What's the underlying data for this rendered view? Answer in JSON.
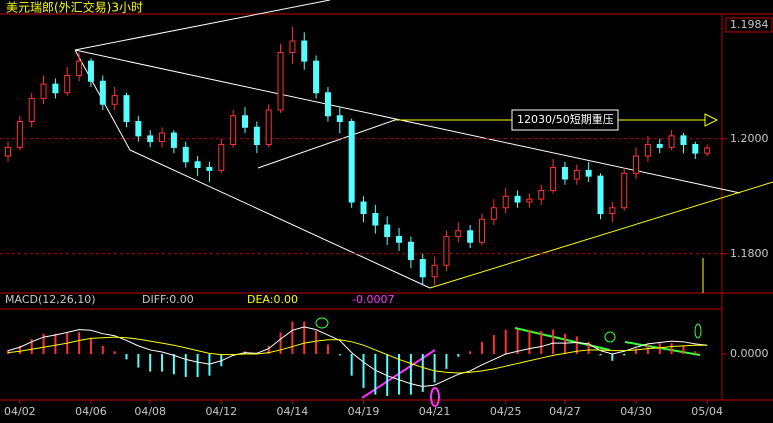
{
  "chart_data": {
    "type": "candlestick",
    "title": "美元瑞郎(外汇交易)3小时",
    "annotation": "12030/50短期重压",
    "last_price": 1.1984,
    "categories": [
      null,
      "04/02",
      null,
      null,
      null,
      null,
      null,
      "04/06",
      null,
      null,
      null,
      null,
      "04/08",
      null,
      null,
      null,
      null,
      null,
      "04/12",
      null,
      null,
      null,
      null,
      null,
      "04/14",
      null,
      null,
      null,
      null,
      null,
      "04/19",
      null,
      null,
      null,
      null,
      null,
      "04/21",
      null,
      null,
      null,
      null,
      null,
      "04/25",
      null,
      null,
      null,
      null,
      "04/27",
      null,
      null,
      null,
      null,
      null,
      "04/30",
      null,
      null,
      null,
      null,
      null,
      "05/04"
    ],
    "open": [
      1.197,
      1.1985,
      1.203,
      1.207,
      1.2095,
      1.208,
      1.211,
      1.2135,
      1.21,
      1.206,
      1.2075,
      1.203,
      1.2005,
      1.1995,
      1.201,
      1.1985,
      1.196,
      1.195,
      1.1945,
      1.199,
      1.204,
      1.202,
      1.199,
      1.205,
      1.215,
      1.217,
      1.2135,
      1.208,
      1.204,
      1.203,
      1.189,
      1.187,
      1.185,
      1.183,
      1.182,
      1.179,
      1.176,
      1.178,
      1.183,
      1.184,
      1.182,
      1.186,
      1.188,
      1.19,
      1.189,
      1.1895,
      1.191,
      1.195,
      1.193,
      1.1945,
      1.1935,
      1.187,
      1.188,
      1.194,
      1.197,
      1.199,
      1.1985,
      1.2005,
      1.199,
      1.1975
    ],
    "high": [
      1.1995,
      1.204,
      1.208,
      1.211,
      1.2105,
      1.2125,
      1.215,
      1.214,
      1.211,
      1.209,
      1.208,
      1.204,
      1.2015,
      1.202,
      1.2015,
      1.1995,
      1.197,
      1.196,
      1.2,
      1.205,
      1.2055,
      1.203,
      1.206,
      1.2165,
      1.2195,
      1.2185,
      1.2145,
      1.209,
      1.2055,
      1.2035,
      1.19,
      1.1885,
      1.1865,
      1.1845,
      1.183,
      1.18,
      1.1795,
      1.184,
      1.1855,
      1.185,
      1.187,
      1.1895,
      1.1915,
      1.191,
      1.1905,
      1.192,
      1.1965,
      1.196,
      1.1955,
      1.196,
      1.194,
      1.189,
      1.195,
      1.1985,
      1.2005,
      1.2,
      1.2015,
      1.201,
      1.1995,
      1.199
    ],
    "low": [
      1.196,
      1.198,
      1.202,
      1.206,
      1.207,
      1.2075,
      1.21,
      1.209,
      1.205,
      1.205,
      1.202,
      1.1995,
      1.1985,
      1.1985,
      1.1975,
      1.195,
      1.1935,
      1.1925,
      1.194,
      1.1985,
      1.201,
      1.1975,
      1.1985,
      1.2045,
      1.213,
      1.212,
      1.207,
      1.203,
      1.201,
      1.188,
      1.1855,
      1.1835,
      1.1815,
      1.1805,
      1.1775,
      1.1745,
      1.1745,
      1.177,
      1.182,
      1.181,
      1.1815,
      1.185,
      1.187,
      1.188,
      1.188,
      1.1885,
      1.1905,
      1.192,
      1.192,
      1.1925,
      1.186,
      1.1855,
      1.1875,
      1.193,
      1.196,
      1.1975,
      1.198,
      1.1975,
      1.1965,
      1.197
    ],
    "close": [
      1.1985,
      1.203,
      1.207,
      1.2095,
      1.208,
      1.211,
      1.2135,
      1.21,
      1.206,
      1.2075,
      1.203,
      1.2005,
      1.1995,
      1.201,
      1.1985,
      1.196,
      1.195,
      1.1945,
      1.199,
      1.204,
      1.202,
      1.199,
      1.205,
      1.215,
      1.217,
      1.2135,
      1.208,
      1.204,
      1.203,
      1.189,
      1.187,
      1.185,
      1.183,
      1.182,
      1.179,
      1.176,
      1.178,
      1.183,
      1.184,
      1.182,
      1.186,
      1.188,
      1.19,
      1.189,
      1.1895,
      1.191,
      1.195,
      1.193,
      1.1945,
      1.1935,
      1.187,
      1.188,
      1.194,
      1.197,
      1.199,
      1.1985,
      1.2005,
      1.199,
      1.1975,
      1.1984
    ],
    "up_color": "#ff3232",
    "down_color": "#54ffff",
    "ylim": [
      1.1737,
      1.221
    ],
    "yticks": [
      {
        "value": 1.2,
        "label": "1.2000"
      },
      {
        "value": 1.18,
        "label": "1.1800"
      }
    ],
    "macd": {
      "label": "MACD(12,26,10)",
      "diff_label": "DIFF:0.00",
      "dea_label": "DEA:0.00",
      "value": -0.0007,
      "ylim": [
        -0.0065,
        0.0065
      ],
      "yticks": [
        {
          "value": 0,
          "label": "0.0000"
        }
      ],
      "diff": [
        0.0005,
        0.001,
        0.0018,
        0.0025,
        0.0028,
        0.0032,
        0.0036,
        0.0035,
        0.003,
        0.0027,
        0.002,
        0.0012,
        0.0006,
        0.0003,
        -0.0002,
        -0.0008,
        -0.0012,
        -0.0015,
        -0.001,
        -0.0002,
        0.0002,
        0.0001,
        0.0008,
        0.0022,
        0.0035,
        0.004,
        0.0036,
        0.0028,
        0.002,
        0.0002,
        -0.0012,
        -0.0024,
        -0.0032,
        -0.0038,
        -0.0044,
        -0.0048,
        -0.0046,
        -0.0038,
        -0.003,
        -0.0025,
        -0.0016,
        -0.0008,
        0.0,
        0.0004,
        0.0008,
        0.0011,
        0.0016,
        0.0016,
        0.0017,
        0.0015,
        0.0005,
        0.0,
        0.0004,
        0.001,
        0.0015,
        0.0017,
        0.0019,
        0.0018,
        0.0015,
        0.0013
      ],
      "dea": [
        0.0002,
        0.0004,
        0.0007,
        0.001,
        0.0013,
        0.0016,
        0.002,
        0.0023,
        0.0024,
        0.0025,
        0.0024,
        0.0022,
        0.0019,
        0.0016,
        0.0013,
        0.0009,
        0.0005,
        0.0001,
        -0.0001,
        -0.0001,
        0.0,
        0.0,
        0.0002,
        0.0006,
        0.0011,
        0.0016,
        0.0019,
        0.0021,
        0.0021,
        0.0018,
        0.0013,
        0.0006,
        -0.0001,
        -0.0008,
        -0.0014,
        -0.002,
        -0.0025,
        -0.0027,
        -0.0028,
        -0.0027,
        -0.0025,
        -0.0022,
        -0.0018,
        -0.0014,
        -0.001,
        -0.0006,
        -0.0002,
        0.0001,
        0.0004,
        0.0006,
        0.0006,
        0.0005,
        0.0005,
        0.0006,
        0.0008,
        0.0009,
        0.0011,
        0.0012,
        0.0013,
        0.0013
      ],
      "hist": [
        0.0006,
        0.0012,
        0.0022,
        0.003,
        0.003,
        0.0032,
        0.0032,
        0.0024,
        0.0012,
        0.0004,
        -0.0008,
        -0.002,
        -0.0026,
        -0.0026,
        -0.003,
        -0.0034,
        -0.0034,
        -0.0032,
        -0.0018,
        -0.0002,
        0.0004,
        0.0002,
        0.0012,
        0.0032,
        0.0048,
        0.0048,
        0.0034,
        0.0014,
        -0.0002,
        -0.0032,
        -0.005,
        -0.006,
        -0.0062,
        -0.006,
        -0.006,
        -0.0056,
        -0.0042,
        -0.0022,
        -0.0004,
        0.0004,
        0.0018,
        0.0028,
        0.0036,
        0.0036,
        0.0036,
        0.0034,
        0.0036,
        0.003,
        0.0026,
        0.0018,
        -0.0002,
        -0.001,
        -0.0002,
        0.0008,
        0.0014,
        0.0016,
        0.0016,
        0.0012,
        0.0004,
        0.0
      ],
      "diff_color": "#ffffff",
      "dea_color": "#ffff00"
    }
  }
}
